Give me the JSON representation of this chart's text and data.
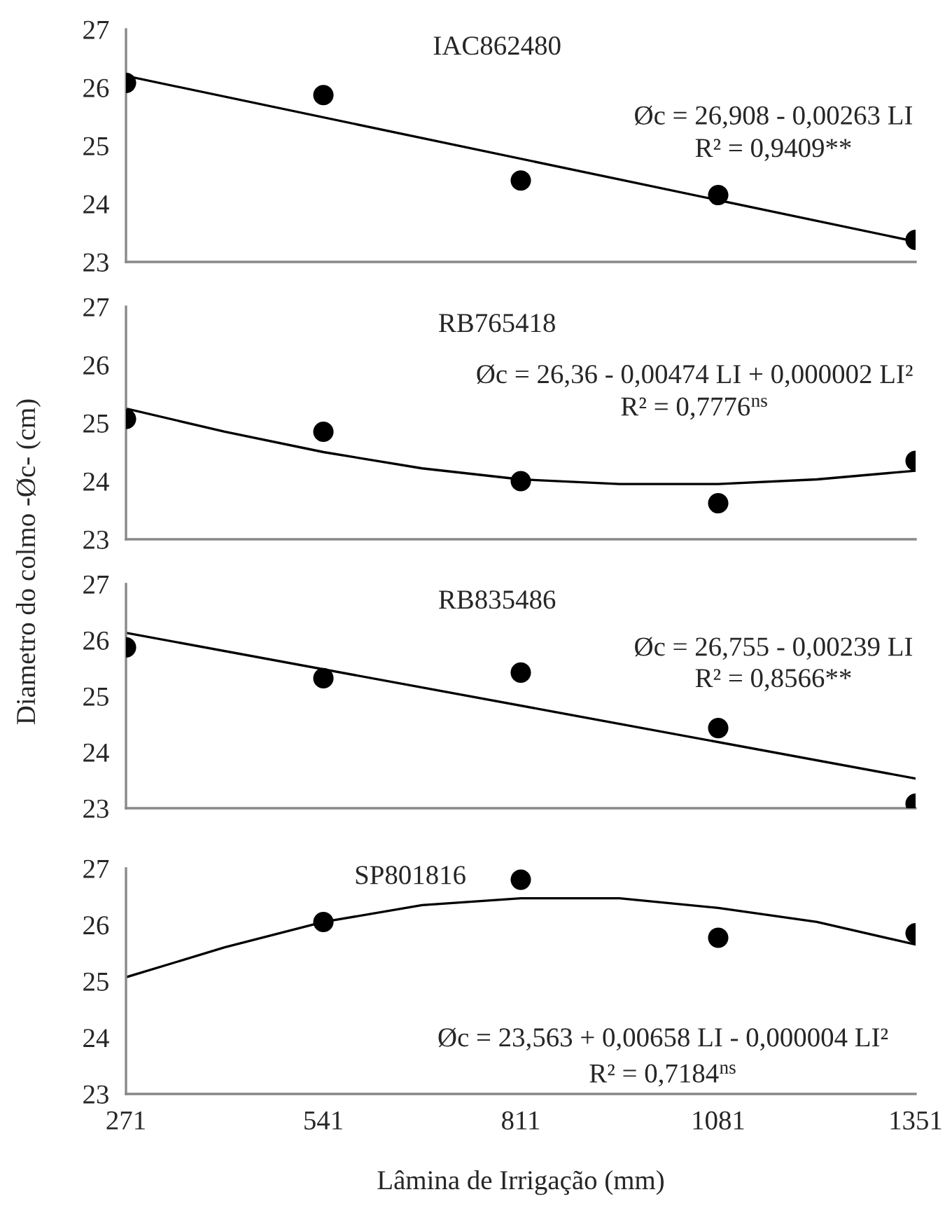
{
  "chart_data": [
    {
      "type": "scatter",
      "title": "IAC862480",
      "xlim": [
        271,
        1351
      ],
      "xticks": [
        271,
        541,
        811,
        1081,
        1351
      ],
      "ylim": [
        23,
        27
      ],
      "yticks": [
        23,
        24,
        25,
        26,
        27
      ],
      "tick_labels": "y",
      "grid": false,
      "legend": false,
      "annotations": [
        "Øc = 26,908 - 0,00263 LI",
        "R² = 0,9409**"
      ],
      "series": [
        {
          "marker": "circle",
          "color": "#000000",
          "x": [
            271,
            541,
            811,
            1081,
            1351
          ],
          "values": [
            26.08,
            25.87,
            24.4,
            24.15,
            23.38
          ]
        },
        {
          "type": "line",
          "marker": "none",
          "color": "#000000",
          "x": [
            271,
            1351
          ],
          "values": [
            26.2,
            23.35
          ]
        }
      ]
    },
    {
      "type": "scatter",
      "title": "RB765418",
      "ylabel": "Diametro do colmo -Øc- (cm)",
      "xlim": [
        271,
        1351
      ],
      "xticks": [
        271,
        541,
        811,
        1081,
        1351
      ],
      "ylim": [
        23,
        27
      ],
      "yticks": [
        23,
        24,
        25,
        26,
        27
      ],
      "tick_labels": "y",
      "grid": false,
      "legend": false,
      "annotations": [
        "Øc = 26,36 - 0,00474 LI + 0,000002 LI²",
        "R² = 0,7776$^{ns}$"
      ],
      "series": [
        {
          "marker": "circle",
          "color": "#000000",
          "x": [
            271,
            541,
            811,
            1081,
            1351
          ],
          "values": [
            25.07,
            24.85,
            24.0,
            23.62,
            24.35
          ]
        },
        {
          "type": "line",
          "marker": "none",
          "color": "#000000",
          "x": [
            271,
            406,
            541,
            676,
            811,
            946,
            1081,
            1216,
            1351
          ],
          "values": [
            25.25,
            24.85,
            24.5,
            24.22,
            24.03,
            23.95,
            23.95,
            24.03,
            24.18
          ]
        }
      ]
    },
    {
      "type": "scatter",
      "title": "RB835486",
      "xlim": [
        271,
        1351
      ],
      "xticks": [
        271,
        541,
        811,
        1081,
        1351
      ],
      "ylim": [
        23,
        27
      ],
      "yticks": [
        23,
        24,
        25,
        26,
        27
      ],
      "tick_labels": "y",
      "grid": false,
      "legend": false,
      "annotations": [
        "Øc = 26,755 - 0,00239 LI",
        "R² = 0,8566**"
      ],
      "series": [
        {
          "marker": "circle",
          "color": "#000000",
          "x": [
            271,
            541,
            811,
            1081,
            1351
          ],
          "values": [
            25.87,
            25.32,
            25.42,
            24.43,
            23.08
          ]
        },
        {
          "type": "line",
          "marker": "none",
          "color": "#000000",
          "x": [
            271,
            1351
          ],
          "values": [
            26.13,
            23.53
          ]
        }
      ]
    },
    {
      "type": "scatter",
      "title": "SP801816",
      "xlabel": "Lâmina de Irrigação (mm)",
      "xlim": [
        271,
        1351
      ],
      "xticks": [
        271,
        541,
        811,
        1081,
        1351
      ],
      "ylim": [
        23,
        27
      ],
      "yticks": [
        23,
        24,
        25,
        26,
        27
      ],
      "grid": false,
      "legend": false,
      "annotations": [
        "Øc = 23,563 + 0,00658 LI - 0,000004 LI²",
        "R² = 0,7184$^{ns}$"
      ],
      "series": [
        {
          "marker": "circle",
          "color": "#000000",
          "x": [
            541,
            811,
            1081,
            1351
          ],
          "values": [
            26.05,
            26.8,
            25.77,
            25.85
          ]
        },
        {
          "type": "line",
          "marker": "none",
          "color": "#000000",
          "x": [
            271,
            406,
            541,
            676,
            811,
            946,
            1081,
            1216,
            1351
          ],
          "values": [
            25.07,
            25.6,
            26.05,
            26.35,
            26.47,
            26.47,
            26.3,
            26.05,
            25.65
          ]
        }
      ]
    }
  ]
}
